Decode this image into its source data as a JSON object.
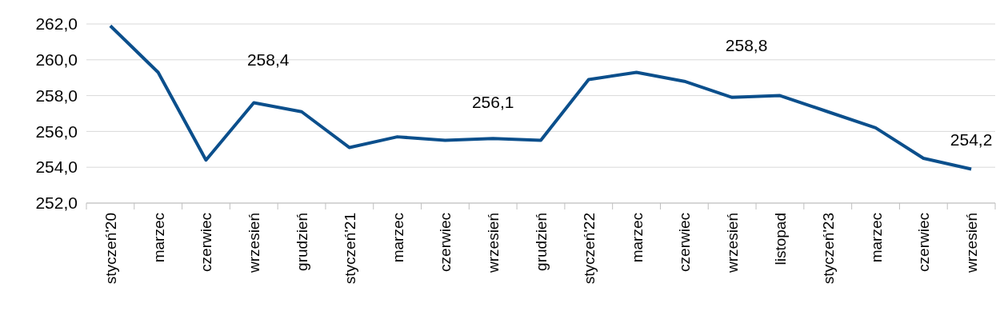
{
  "chart_data": {
    "type": "line",
    "categories": [
      "styczeń'20",
      "marzec",
      "czerwiec",
      "wrzesień",
      "grudzień",
      "styczeń'21",
      "marzec",
      "czerwiec",
      "wrzesień",
      "grudzień",
      "styczeń'22",
      "marzec",
      "czerwiec",
      "wrzesień",
      "listopad",
      "styczeń'23",
      "marzec",
      "czerwiec",
      "wrzesień"
    ],
    "series": [
      {
        "color": "#0b4f8c",
        "values": [
          261.9,
          259.3,
          254.4,
          257.6,
          257.1,
          255.1,
          255.7,
          255.5,
          255.6,
          255.5,
          258.9,
          259.3,
          258.8,
          257.9,
          258.0,
          257.1,
          256.2,
          254.5,
          253.9
        ]
      }
    ],
    "ylim": [
      252,
      262
    ],
    "yticks": [
      {
        "value": 252,
        "label": "252,0"
      },
      {
        "value": 254,
        "label": "254,0"
      },
      {
        "value": 256,
        "label": "256,0"
      },
      {
        "value": 258,
        "label": "258,0"
      },
      {
        "value": 260,
        "label": "260,0"
      },
      {
        "value": 262,
        "label": "262,0"
      }
    ],
    "grid": "y",
    "legend": false,
    "marker": "none",
    "line_style": "solid",
    "annotations": [
      "258,4",
      "256,1",
      "258,8",
      "254,2"
    ]
  }
}
